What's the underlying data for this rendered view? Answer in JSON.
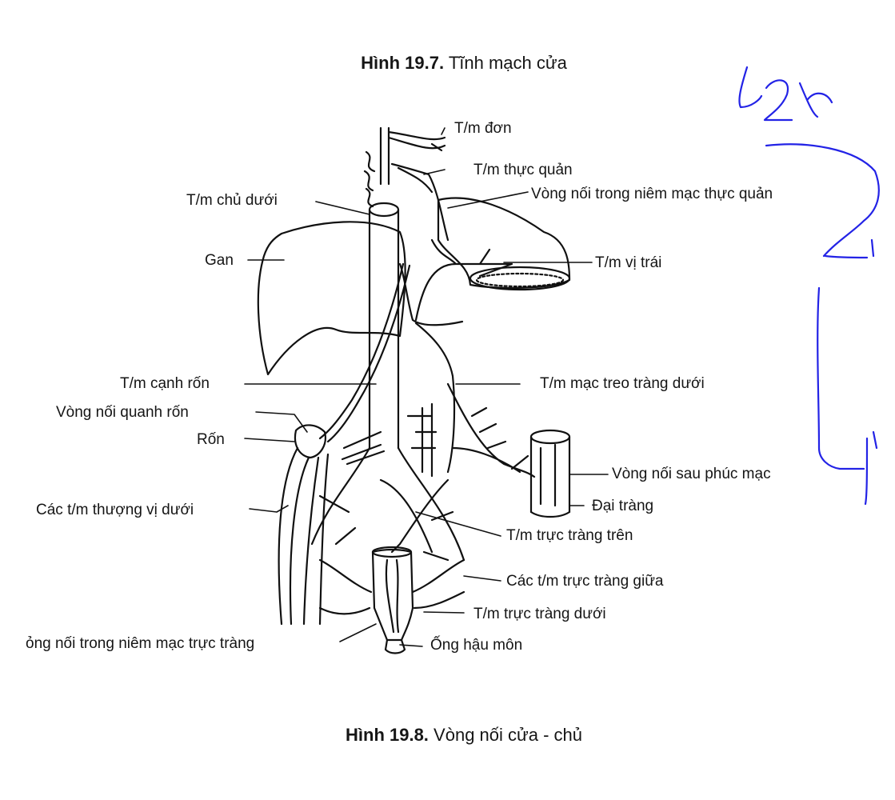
{
  "caption_top": {
    "number": "Hình 19.7.",
    "title": "Tĩnh mạch cửa"
  },
  "caption_bottom": {
    "number": "Hình 19.8.",
    "title": "Vòng nối cửa - chủ"
  },
  "labels": {
    "tm_don": "T/m đơn",
    "tm_thuc_quan": "T/m thực quản",
    "vong_noi_thuc_quan": "Vòng nối trong niêm mạc thực quản",
    "tm_chu_duoi": "T/m chủ dưới",
    "gan": "Gan",
    "tm_vi_trai": "T/m vị trái",
    "tm_canh_ron": "T/m cạnh rốn",
    "tm_mac_treo_trang_duoi": "T/m mạc treo tràng dưới",
    "vong_noi_quanh_ron": "Vòng nối quanh rốn",
    "ron": "Rốn",
    "vong_noi_sau_phuc_mac": "Vòng nối sau phúc mạc",
    "cac_tm_thuong_vi_duoi": "Các t/m thượng vị dưới",
    "dai_trang": "Đại tràng",
    "tm_truc_trang_tren": "T/m trực tràng trên",
    "cac_tm_truc_trang_giua": "Các t/m trực tràng giữa",
    "tm_truc_trang_duoi": "T/m trực tràng dưới",
    "vong_noi_niem_mac_truc_trang": "ỏng nối trong niêm mạc trực tràng",
    "ong_hau_mon": "Ống hậu môn"
  },
  "handwriting": {
    "note_top": "L2X",
    "note_mid": "2",
    "note_bottom": "4"
  },
  "colors": {
    "ink": "#111111",
    "handwriting": "#2323e6"
  }
}
